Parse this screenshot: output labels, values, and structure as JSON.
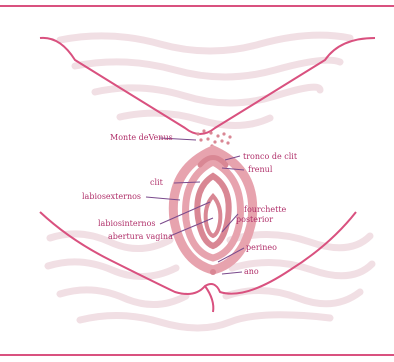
{
  "diagram": {
    "colors": {
      "outline": "#d9517f",
      "wave": "#f1dfe4",
      "anatomy": "#e7a3ae",
      "anatomy_dark": "#d98794",
      "leader": "#7a4a8c",
      "label": "#b0306a"
    },
    "labels": {
      "monte_venus": "Monte deVenus",
      "tronco_clitoris": "tronco de clit",
      "frenulo": "frenul",
      "clitoris": "clit",
      "labios_externos": "labiosexternos",
      "labios_internos": "labiosinternos",
      "abertura_vagina": "abertura vagina",
      "fourchette_line1": "fourchette",
      "fourchette_line2": "posterior",
      "perineo": "perineo",
      "anus": "ano"
    }
  }
}
